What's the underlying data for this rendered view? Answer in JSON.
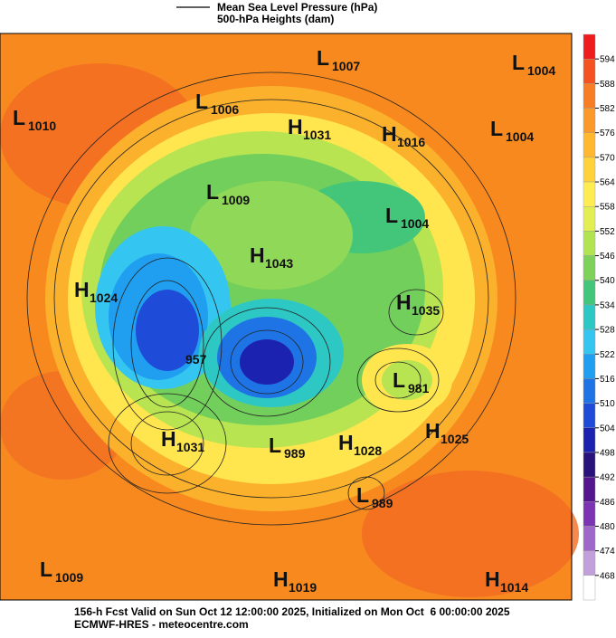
{
  "header": {
    "legend": [
      "Mean Sea Level Pressure (hPa)",
      "500-hPa Heights (dam)"
    ]
  },
  "centers": [
    {
      "letter": "L",
      "value": 1007
    },
    {
      "letter": "L",
      "value": 1004
    },
    {
      "letter": "L",
      "value": 1010
    },
    {
      "letter": "L",
      "value": 1006
    },
    {
      "letter": "H",
      "value": 1031
    },
    {
      "letter": "H",
      "value": 1016
    },
    {
      "letter": "L",
      "value": 1004
    },
    {
      "letter": "L",
      "value": 1009
    },
    {
      "letter": "L",
      "value": 1004
    },
    {
      "letter": "H",
      "value": 1043
    },
    {
      "letter": "H",
      "value": 1024
    },
    {
      "letter": "H",
      "value": 1035
    },
    {
      "value": 957
    },
    {
      "letter": "L",
      "value": 981
    },
    {
      "letter": "H",
      "value": 1031
    },
    {
      "letter": "L",
      "value": 989
    },
    {
      "letter": "H",
      "value": 1028
    },
    {
      "letter": "H",
      "value": 1025
    },
    {
      "letter": "L",
      "value": 989
    },
    {
      "letter": "L",
      "value": 1009
    },
    {
      "letter": "H",
      "value": 1019
    },
    {
      "letter": "H",
      "value": 1014
    }
  ],
  "colorbar": {
    "ticks": [
      594,
      588,
      582,
      576,
      570,
      564,
      558,
      552,
      546,
      540,
      534,
      528,
      522,
      516,
      510,
      504,
      498,
      492,
      486,
      480,
      474,
      468
    ],
    "colors": [
      "#ee1c1c",
      "#f4521f",
      "#f77e24",
      "#fb9a2a",
      "#ffb830",
      "#ffd23c",
      "#ffec52",
      "#e2ee52",
      "#b2e452",
      "#7ed25a",
      "#44c67a",
      "#2ec8c4",
      "#34c6f0",
      "#209ef0",
      "#1e74e4",
      "#1e4cd8",
      "#1c22b0",
      "#2a127c",
      "#54168e",
      "#7a34b4",
      "#9e68c8",
      "#c2a0dc",
      "#ffffff"
    ]
  },
  "footer": {
    "lines": [
      "156-h Fcst Valid on Sun Oct 12 12:00:00 2025, Initialized on Mon Oct  6 00:00:00 2025",
      "ECMWF-HRES  - meteocentre.com"
    ]
  }
}
